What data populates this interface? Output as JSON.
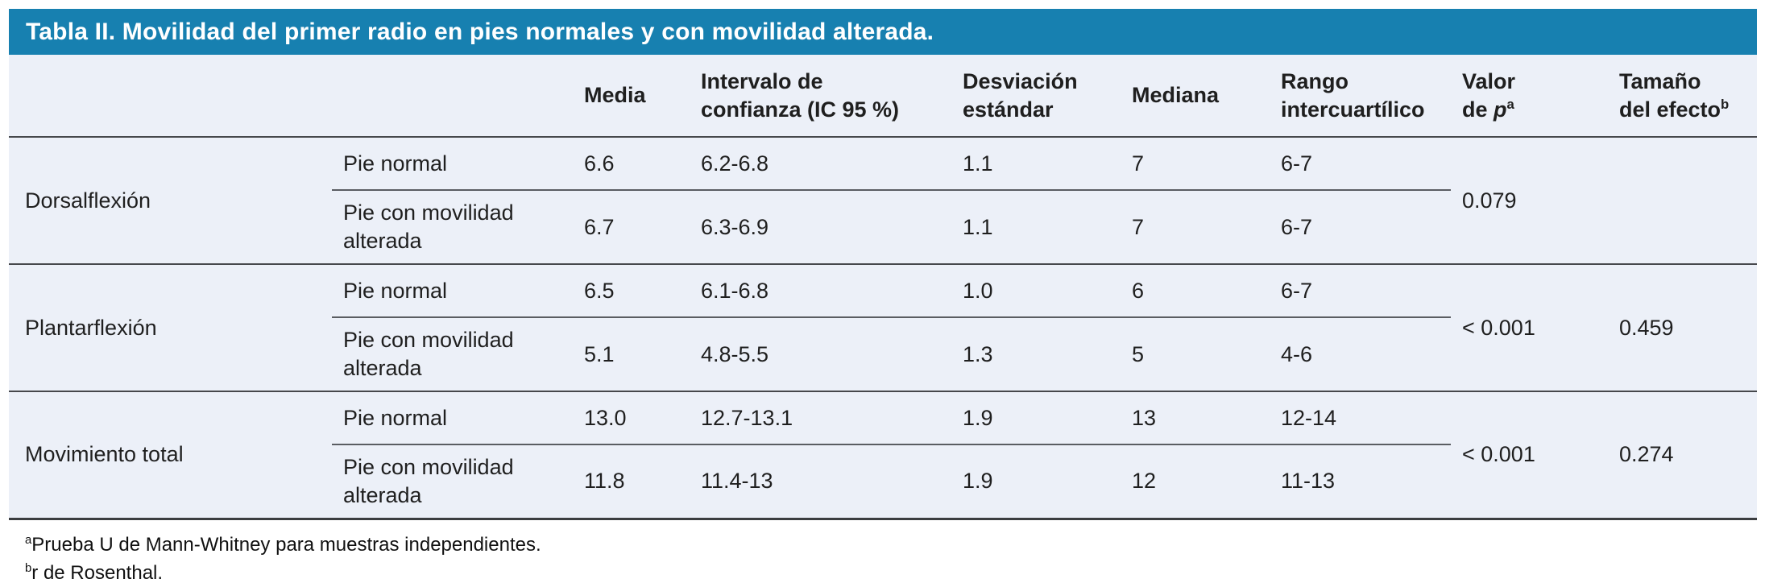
{
  "colors": {
    "title_bar_bg": "#1780b0",
    "title_text": "#ffffff",
    "table_bg": "#ecf0f8",
    "border_dark": "#46484c",
    "border_light": "#5a5d62",
    "text": "#1f1f1f"
  },
  "title": "Tabla II. Movilidad del primer radio en pies normales y con movilidad alterada.",
  "headers": {
    "media": "Media",
    "ic_line1": "Intervalo de",
    "ic_line2": "confianza (IC 95 %)",
    "de_line1": "Desviación",
    "de_line2": "estándar",
    "mediana": "Mediana",
    "rango_line1": "Rango",
    "rango_line2": "intercuartílico",
    "p_line1": "Valor",
    "p_line2_pre": "de ",
    "p_italic": "p",
    "p_sup": "a",
    "efecto_line1": "Tamaño",
    "efecto_line2": "del efecto",
    "efecto_sup": "b"
  },
  "sections": [
    {
      "label": "Dorsalflexión",
      "p_value": "0.079",
      "effect_size": "",
      "rows": [
        {
          "group": "Pie normal",
          "media": "6.6",
          "ic": "6.2-6.8",
          "de": "1.1",
          "mediana": "7",
          "rango": "6-7"
        },
        {
          "group": "Pie con movilidad alterada",
          "media": "6.7",
          "ic": "6.3-6.9",
          "de": "1.1",
          "mediana": "7",
          "rango": "6-7"
        }
      ]
    },
    {
      "label": "Plantarflexión",
      "p_value": "< 0.001",
      "effect_size": "0.459",
      "rows": [
        {
          "group": "Pie normal",
          "media": "6.5",
          "ic": "6.1-6.8",
          "de": "1.0",
          "mediana": "6",
          "rango": "6-7"
        },
        {
          "group": "Pie con movilidad alterada",
          "media": "5.1",
          "ic": "4.8-5.5",
          "de": "1.3",
          "mediana": "5",
          "rango": "4-6"
        }
      ]
    },
    {
      "label": "Movimiento total",
      "p_value": "< 0.001",
      "effect_size": "0.274",
      "rows": [
        {
          "group": "Pie normal",
          "media": "13.0",
          "ic": "12.7-13.1",
          "de": "1.9",
          "mediana": "13",
          "rango": "12-14"
        },
        {
          "group": "Pie con movilidad alterada",
          "media": "11.8",
          "ic": "11.4-13",
          "de": "1.9",
          "mediana": "12",
          "rango": "11-13"
        }
      ]
    }
  ],
  "footnotes": [
    {
      "sup": "a",
      "text": "Prueba U de Mann-Whitney para muestras independientes."
    },
    {
      "sup": "b",
      "text": "r de Rosenthal."
    }
  ]
}
